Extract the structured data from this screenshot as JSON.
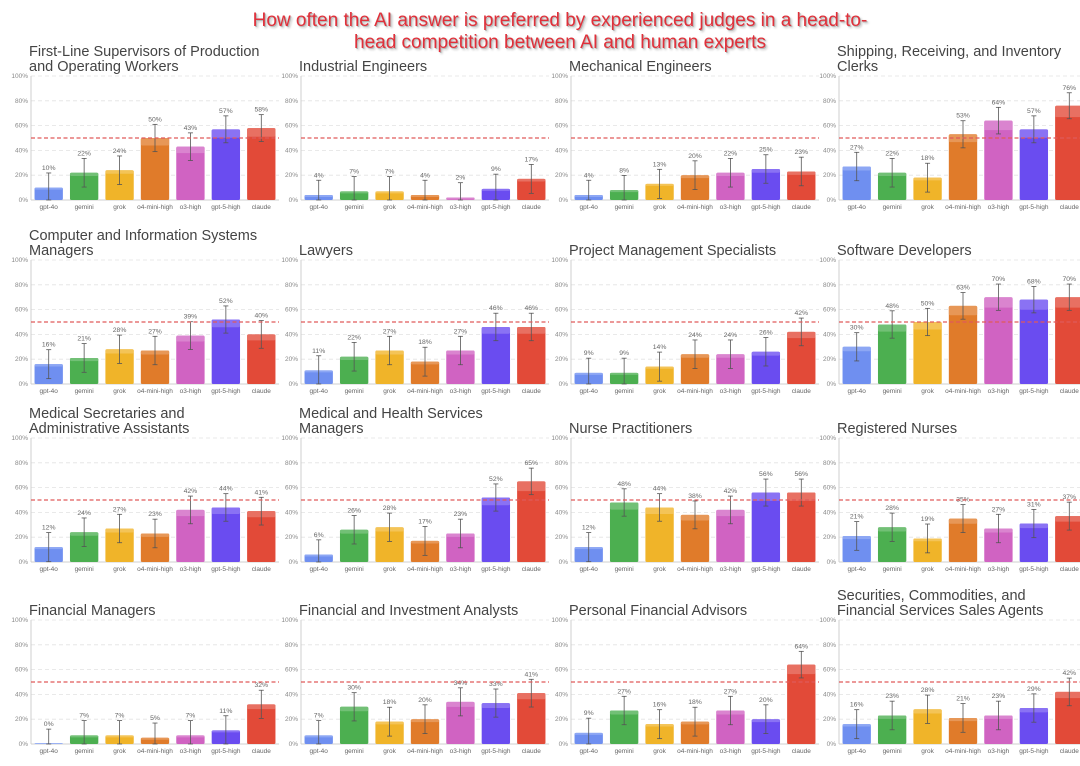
{
  "page": {
    "title": "How often the AI answer is preferred by experienced judges in a head-to-head competition between AI and human experts"
  },
  "colors": {
    "gpt-4o": "#6f8ff0",
    "gemini": "#4caf50",
    "grok": "#f0b429",
    "o4-mini-high": "#e07b2a",
    "o3-high": "#d063c2",
    "gpt-5-high": "#6a4cf0",
    "claude": "#e24a38",
    "reference_line": "#e05a5a"
  },
  "chart_data": [
    {
      "type": "bar",
      "title": "First-Line Supervisors of Production and Operating Workers",
      "categories": [
        "gpt-4o",
        "gemini",
        "grok",
        "o4-mini-high",
        "o3-high",
        "gpt-5-high",
        "claude"
      ],
      "values": [
        10,
        22,
        24,
        50,
        43,
        57,
        58
      ],
      "ylim": [
        0,
        100
      ],
      "yticks": [
        "0%",
        "20%",
        "40%",
        "60%",
        "80%",
        "100%"
      ],
      "reference_line": 50,
      "error_bars": true
    },
    {
      "type": "bar",
      "title": "Industrial Engineers",
      "categories": [
        "gpt-4o",
        "gemini",
        "grok",
        "o4-mini-high",
        "o3-high",
        "gpt-5-high",
        "claude"
      ],
      "values": [
        4,
        7,
        7,
        4,
        2,
        9,
        17
      ],
      "ylim": [
        0,
        100
      ],
      "yticks": [
        "0%",
        "20%",
        "40%",
        "60%",
        "80%",
        "100%"
      ],
      "reference_line": 50,
      "error_bars": true
    },
    {
      "type": "bar",
      "title": "Mechanical Engineers",
      "categories": [
        "gpt-4o",
        "gemini",
        "grok",
        "o4-mini-high",
        "o3-high",
        "gpt-5-high",
        "claude"
      ],
      "values": [
        4,
        8,
        13,
        20,
        22,
        25,
        23
      ],
      "ylim": [
        0,
        100
      ],
      "yticks": [
        "0%",
        "20%",
        "40%",
        "60%",
        "80%",
        "100%"
      ],
      "reference_line": 50,
      "error_bars": true
    },
    {
      "type": "bar",
      "title": "Shipping, Receiving, and Inventory Clerks",
      "categories": [
        "gpt-4o",
        "gemini",
        "grok",
        "o4-mini-high",
        "o3-high",
        "gpt-5-high",
        "claude"
      ],
      "values": [
        27,
        22,
        18,
        53,
        64,
        57,
        76
      ],
      "ylim": [
        0,
        100
      ],
      "yticks": [
        "0%",
        "20%",
        "40%",
        "60%",
        "80%",
        "100%"
      ],
      "reference_line": 50,
      "error_bars": true
    },
    {
      "type": "bar",
      "title": "Computer and Information Systems Managers",
      "categories": [
        "gpt-4o",
        "gemini",
        "grok",
        "o4-mini-high",
        "o3-high",
        "gpt-5-high",
        "claude"
      ],
      "values": [
        16,
        21,
        28,
        27,
        39,
        52,
        40
      ],
      "ylim": [
        0,
        100
      ],
      "yticks": [
        "0%",
        "20%",
        "40%",
        "60%",
        "80%",
        "100%"
      ],
      "reference_line": 50,
      "error_bars": true
    },
    {
      "type": "bar",
      "title": "Lawyers",
      "categories": [
        "gpt-4o",
        "gemini",
        "grok",
        "o4-mini-high",
        "o3-high",
        "gpt-5-high",
        "claude"
      ],
      "values": [
        11,
        22,
        27,
        18,
        27,
        46,
        46
      ],
      "ylim": [
        0,
        100
      ],
      "yticks": [
        "0%",
        "20%",
        "40%",
        "60%",
        "80%",
        "100%"
      ],
      "reference_line": 50,
      "error_bars": true
    },
    {
      "type": "bar",
      "title": "Project Management Specialists",
      "categories": [
        "gpt-4o",
        "gemini",
        "grok",
        "o4-mini-high",
        "o3-high",
        "gpt-5-high",
        "claude"
      ],
      "values": [
        9,
        9,
        14,
        24,
        24,
        26,
        42
      ],
      "ylim": [
        0,
        100
      ],
      "yticks": [
        "0%",
        "20%",
        "40%",
        "60%",
        "80%",
        "100%"
      ],
      "reference_line": 50,
      "error_bars": true
    },
    {
      "type": "bar",
      "title": "Software Developers",
      "categories": [
        "gpt-4o",
        "gemini",
        "grok",
        "o4-mini-high",
        "o3-high",
        "gpt-5-high",
        "claude"
      ],
      "values": [
        30,
        48,
        50,
        63,
        70,
        68,
        70
      ],
      "ylim": [
        0,
        100
      ],
      "yticks": [
        "0%",
        "20%",
        "40%",
        "60%",
        "80%",
        "100%"
      ],
      "reference_line": 50,
      "error_bars": true
    },
    {
      "type": "bar",
      "title": "Medical Secretaries and Administrative Assistants",
      "categories": [
        "gpt-4o",
        "gemini",
        "grok",
        "o4-mini-high",
        "o3-high",
        "gpt-5-high",
        "claude"
      ],
      "values": [
        12,
        24,
        27,
        23,
        42,
        44,
        41
      ],
      "ylim": [
        0,
        100
      ],
      "yticks": [
        "0%",
        "20%",
        "40%",
        "60%",
        "80%",
        "100%"
      ],
      "reference_line": 50,
      "error_bars": true
    },
    {
      "type": "bar",
      "title": "Medical and Health Services Managers",
      "categories": [
        "gpt-4o",
        "gemini",
        "grok",
        "o4-mini-high",
        "o3-high",
        "gpt-5-high",
        "claude"
      ],
      "values": [
        6,
        26,
        28,
        17,
        23,
        52,
        65
      ],
      "ylim": [
        0,
        100
      ],
      "yticks": [
        "0%",
        "20%",
        "40%",
        "60%",
        "80%",
        "100%"
      ],
      "reference_line": 50,
      "error_bars": true
    },
    {
      "type": "bar",
      "title": "Nurse Practitioners",
      "categories": [
        "gpt-4o",
        "gemini",
        "grok",
        "o4-mini-high",
        "o3-high",
        "gpt-5-high",
        "claude"
      ],
      "values": [
        12,
        48,
        44,
        38,
        42,
        56,
        56
      ],
      "ylim": [
        0,
        100
      ],
      "yticks": [
        "0%",
        "20%",
        "40%",
        "60%",
        "80%",
        "100%"
      ],
      "reference_line": 50,
      "error_bars": true
    },
    {
      "type": "bar",
      "title": "Registered Nurses",
      "categories": [
        "gpt-4o",
        "gemini",
        "grok",
        "o4-mini-high",
        "o3-high",
        "gpt-5-high",
        "claude"
      ],
      "values": [
        21,
        28,
        19,
        35,
        27,
        31,
        37
      ],
      "ylim": [
        0,
        100
      ],
      "yticks": [
        "0%",
        "20%",
        "40%",
        "60%",
        "80%",
        "100%"
      ],
      "reference_line": 50,
      "error_bars": true
    },
    {
      "type": "bar",
      "title": "Financial Managers",
      "categories": [
        "gpt-4o",
        "gemini",
        "grok",
        "o4-mini-high",
        "o3-high",
        "gpt-5-high",
        "claude"
      ],
      "values": [
        0,
        7,
        7,
        5,
        7,
        11,
        32
      ],
      "ylim": [
        0,
        100
      ],
      "yticks": [
        "0%",
        "20%",
        "40%",
        "60%",
        "80%",
        "100%"
      ],
      "reference_line": 50,
      "error_bars": true
    },
    {
      "type": "bar",
      "title": "Financial and Investment Analysts",
      "categories": [
        "gpt-4o",
        "gemini",
        "grok",
        "o4-mini-high",
        "o3-high",
        "gpt-5-high",
        "claude"
      ],
      "values": [
        7,
        30,
        18,
        20,
        34,
        33,
        41
      ],
      "ylim": [
        0,
        100
      ],
      "yticks": [
        "0%",
        "20%",
        "40%",
        "60%",
        "80%",
        "100%"
      ],
      "reference_line": 50,
      "error_bars": true
    },
    {
      "type": "bar",
      "title": "Personal Financial Advisors",
      "categories": [
        "gpt-4o",
        "gemini",
        "grok",
        "o4-mini-high",
        "o3-high",
        "gpt-5-high",
        "claude"
      ],
      "values": [
        9,
        27,
        16,
        18,
        27,
        20,
        64
      ],
      "ylim": [
        0,
        100
      ],
      "yticks": [
        "0%",
        "20%",
        "40%",
        "60%",
        "80%",
        "100%"
      ],
      "reference_line": 50,
      "error_bars": true
    },
    {
      "type": "bar",
      "title": "Securities, Commodities, and Financial Services Sales Agents",
      "categories": [
        "gpt-4o",
        "gemini",
        "grok",
        "o4-mini-high",
        "o3-high",
        "gpt-5-high",
        "claude"
      ],
      "values": [
        16,
        23,
        28,
        21,
        23,
        29,
        42
      ],
      "ylim": [
        0,
        100
      ],
      "yticks": [
        "0%",
        "20%",
        "40%",
        "60%",
        "80%",
        "100%"
      ],
      "reference_line": 50,
      "error_bars": true
    }
  ]
}
